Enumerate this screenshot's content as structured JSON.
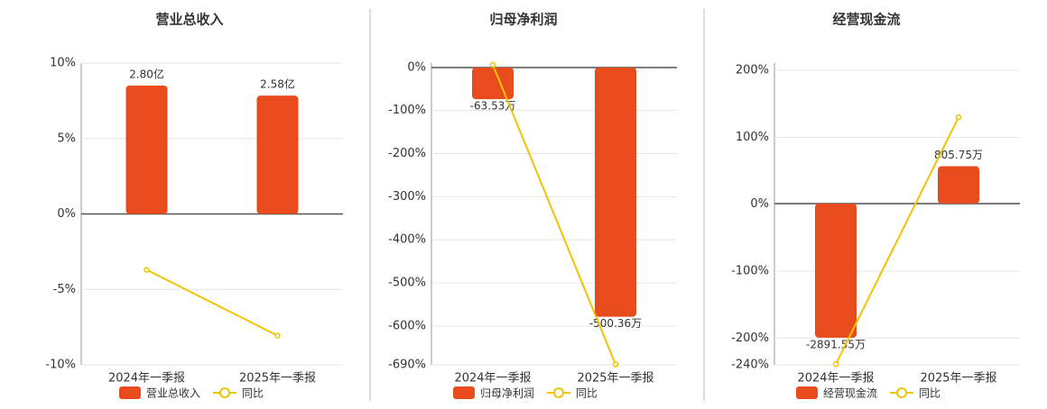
{
  "chart_data": [
    {
      "type": "bar-line",
      "title": "营业总收入",
      "categories": [
        "2024年一季报",
        "2025年一季报"
      ],
      "series": [
        {
          "name": "营业总收入",
          "color": "#e84b1c",
          "axis": "y2",
          "values": [
            2.8,
            2.58
          ],
          "value_labels": [
            "2.80亿",
            "2.58亿"
          ]
        },
        {
          "name": "同比",
          "color": "#f0c400",
          "values": [
            -3.7,
            -8.06
          ]
        }
      ],
      "ylim": [
        -10,
        10
      ],
      "yticks": [
        {
          "value": 10,
          "label": "10%"
        },
        {
          "value": 5,
          "label": "5%"
        },
        {
          "value": 0,
          "label": "0%"
        },
        {
          "value": -5,
          "label": "-5%"
        },
        {
          "value": -10,
          "label": "-10%"
        }
      ],
      "y2lim": [
        -3.29,
        3.29
      ],
      "grid": true
    },
    {
      "type": "bar-line",
      "title": "归母净利润",
      "categories": [
        "2024年一季报",
        "2025年一季报"
      ],
      "series": [
        {
          "name": "归母净利润",
          "color": "#e84b1c",
          "axis": "y2",
          "values": [
            -63.53,
            -500.36
          ],
          "value_labels": [
            "-63.53万",
            "-500.36万"
          ]
        },
        {
          "name": "同比",
          "color": "#f0c400",
          "values": [
            6,
            -689
          ]
        }
      ],
      "ylim": [
        -690,
        10
      ],
      "yticks": [
        {
          "value": 0,
          "label": "0%"
        },
        {
          "value": -100,
          "label": "-100%"
        },
        {
          "value": -200,
          "label": "-200%"
        },
        {
          "value": -300,
          "label": "-300%"
        },
        {
          "value": -400,
          "label": "-400%"
        },
        {
          "value": -500,
          "label": "-500%"
        },
        {
          "value": -600,
          "label": "-600%"
        },
        {
          "value": -690,
          "label": "-690%"
        }
      ],
      "y2lim": [
        -597,
        9
      ],
      "grid": true
    },
    {
      "type": "bar-line",
      "title": "经营现金流",
      "categories": [
        "2024年一季报",
        "2025年一季报"
      ],
      "series": [
        {
          "name": "经营现金流",
          "color": "#e84b1c",
          "axis": "y2",
          "values": [
            -2891.55,
            805.75
          ],
          "value_labels": [
            "-2891.55万",
            "805.75万"
          ]
        },
        {
          "name": "同比",
          "color": "#f0c400",
          "values": [
            -239,
            130
          ]
        }
      ],
      "ylim": [
        -240,
        211
      ],
      "yticks": [
        {
          "value": 200,
          "label": "200%"
        },
        {
          "value": 100,
          "label": "100%"
        },
        {
          "value": 0,
          "label": "0%"
        },
        {
          "value": -100,
          "label": "-100%"
        },
        {
          "value": -200,
          "label": "-200%"
        },
        {
          "value": -240,
          "label": "-240%"
        }
      ],
      "y2lim": [
        -3476,
        3029
      ],
      "grid": true
    }
  ]
}
